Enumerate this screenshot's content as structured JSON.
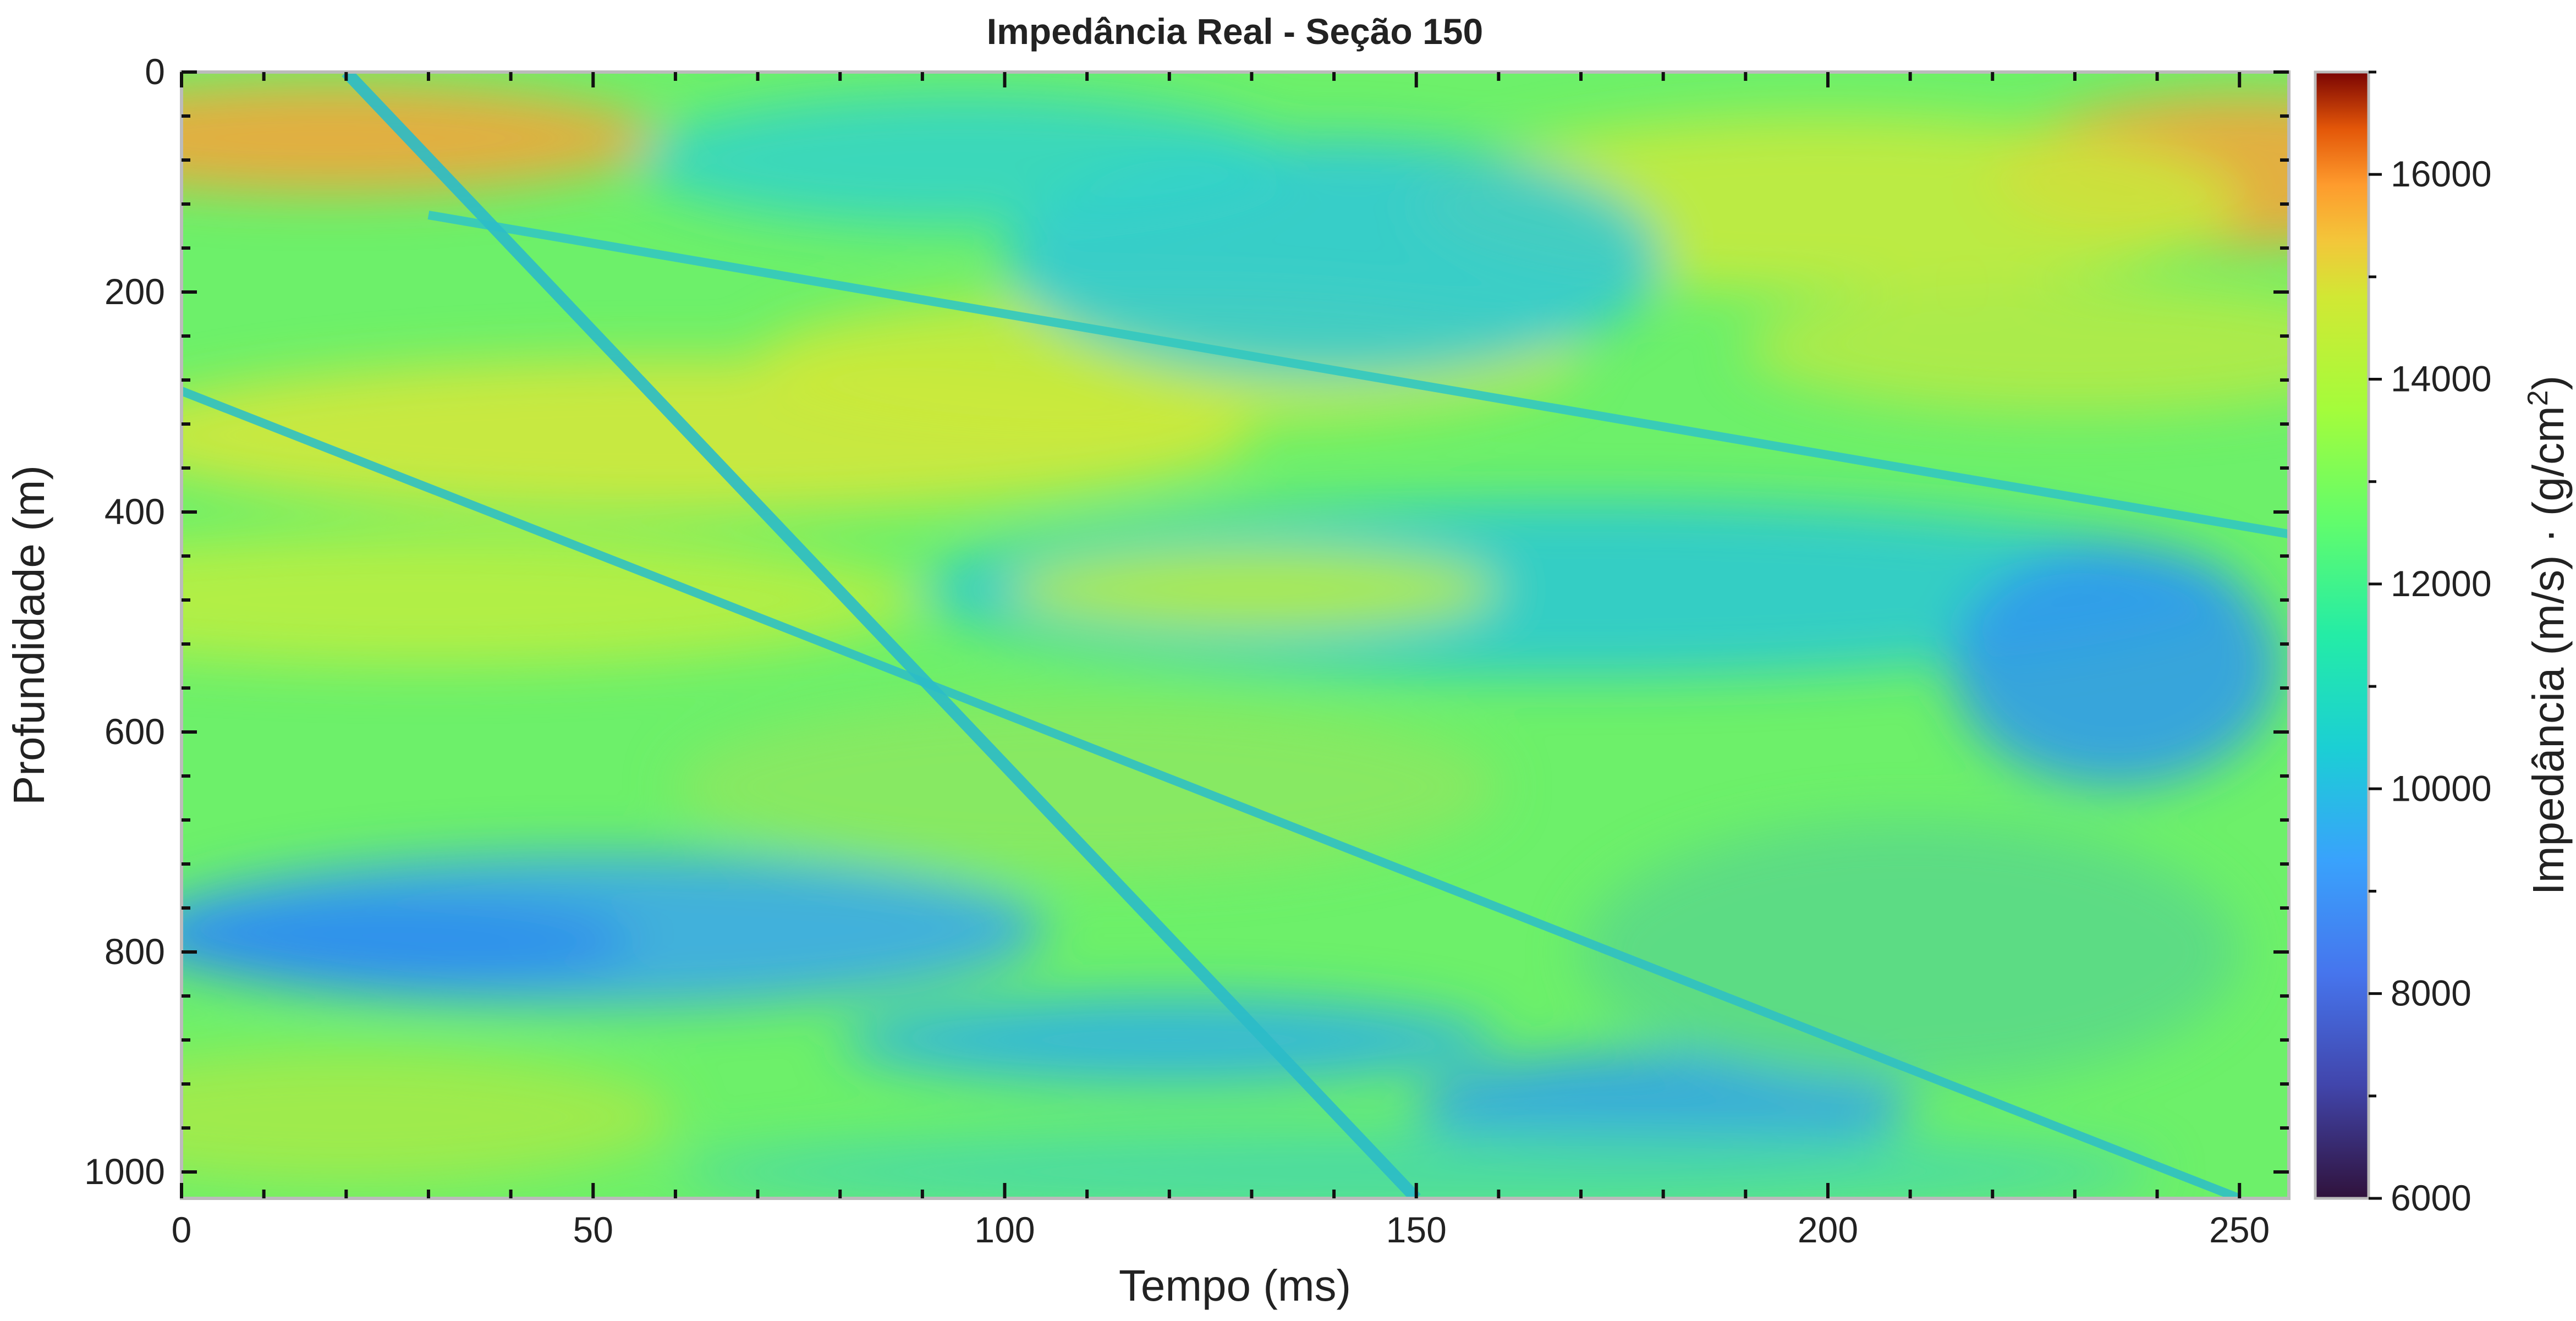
{
  "chart_data": {
    "type": "heatmap",
    "title": "Impedância Real - Seção 150",
    "xlabel": "Tempo (ms)",
    "ylabel": "Profundidade (m)",
    "xlim": [
      0,
      256
    ],
    "ylim": [
      1024,
      0
    ],
    "x_ticks": [
      0,
      50,
      100,
      150,
      200,
      250
    ],
    "y_ticks": [
      0,
      200,
      400,
      600,
      800,
      1000
    ],
    "colorbar": {
      "label": "Impedância (m/s) · (g/cm²)",
      "label_main": "Impedância (m/s) · (g/cm",
      "label_sup": "2",
      "label_close": ")",
      "range": [
        6000,
        17000
      ],
      "ticks": [
        6000,
        8000,
        10000,
        12000,
        14000,
        16000
      ],
      "colormap": "turbo"
    },
    "dominant_range": [
      9500,
      13000
    ],
    "features": {
      "upper_fault_line": [
        [
          30,
          130
        ],
        [
          256,
          420
        ]
      ],
      "lower_fault_line": [
        [
          0,
          290
        ],
        [
          250,
          1024
        ]
      ],
      "steep_fault_line": [
        [
          20,
          0
        ],
        [
          150,
          1024
        ]
      ]
    }
  }
}
